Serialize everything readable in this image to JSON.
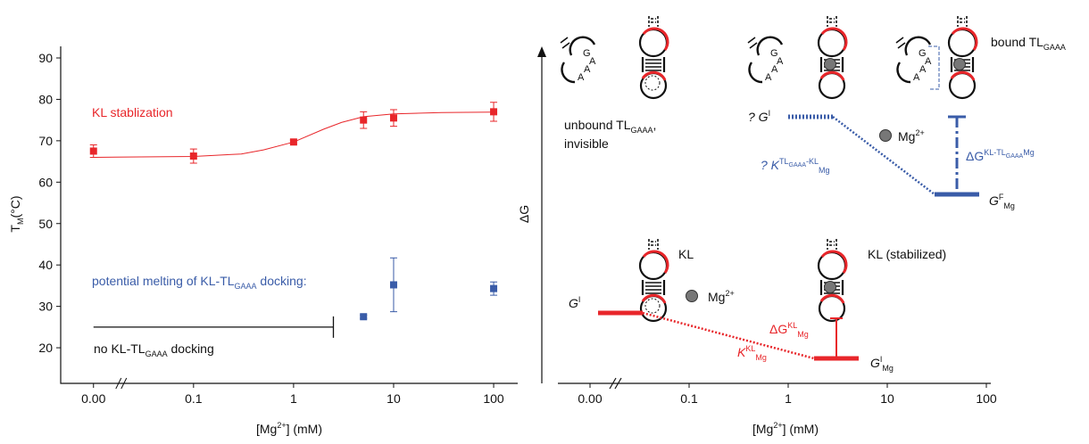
{
  "chart_data": {
    "type": "scatter",
    "x_label": [
      "[Mg",
      "2+",
      "] (mM)"
    ],
    "y_label": [
      "T",
      "M",
      "(°C)"
    ],
    "xscale": "log",
    "x_break": true,
    "xlim": [
      0.0047,
      174
    ],
    "xticks": [
      {
        "value": 0,
        "label": "0.00"
      },
      0.1,
      1,
      10,
      100
    ],
    "ylim": [
      11.4,
      92.8
    ],
    "yticks": [
      20,
      30,
      40,
      50,
      60,
      70,
      80,
      90
    ],
    "series": [
      {
        "type": "scatter",
        "color": "#e8262a",
        "x": [
          0,
          0.1,
          1,
          5,
          10,
          100
        ],
        "values": [
          67.5,
          66.3,
          69.7,
          75,
          75.5,
          77
        ],
        "errors": [
          1.5,
          1.7,
          0.5,
          2,
          2,
          2.3
        ]
      },
      {
        "type": "line",
        "color": "#e8262a",
        "x": [
          0,
          0.1,
          0.3,
          0.5,
          1,
          2,
          3,
          5,
          10,
          30,
          100
        ],
        "values": [
          66,
          66.2,
          66.8,
          67.8,
          69.7,
          72.8,
          74.4,
          75.8,
          76.5,
          76.8,
          76.9
        ]
      },
      {
        "type": "scatter",
        "color": "#3a5ca8",
        "x": [
          5,
          10,
          100
        ],
        "values": [
          27.5,
          35.2,
          34.3
        ],
        "errors": [
          0.4,
          6.5,
          1.6
        ]
      }
    ],
    "annotations": {
      "stabilization": "KL stablization",
      "melting": [
        "potential melting of KL-TL",
        "GAAA",
        " docking:"
      ],
      "no_docking": [
        "no KL-TL",
        "GAAA",
        " docking"
      ],
      "no_docking_line": {
        "x": [
          0,
          2.5
        ],
        "y": 25
      }
    }
  },
  "diagram": {
    "y_label": "ΔG",
    "x_label": [
      "[Mg",
      "2+",
      "] (mM)"
    ],
    "xticks": [
      "0.00",
      "0.1",
      "1",
      "10",
      "100"
    ],
    "unbound": [
      "unbound TL",
      "GAAA",
      ","
    ],
    "invisible": "invisible",
    "bound": [
      "bound TL",
      "GAAA"
    ],
    "gi_question": [
      "? G",
      "I"
    ],
    "mg_top": [
      "Mg",
      "2+"
    ],
    "k_question": [
      "? K",
      "TL",
      "GAAA",
      "-KL",
      "Mg"
    ],
    "dg_bound": [
      "ΔG",
      "KL-TL",
      "GAAA",
      "Mg"
    ],
    "gf": [
      "G",
      "F",
      "Mg"
    ],
    "kl": "KL",
    "kl_stab": "KL (stabilized)",
    "mg_bottom": [
      "Mg",
      "2+"
    ],
    "gi": [
      "G",
      "I"
    ],
    "dg_kl": [
      "ΔG",
      "KL",
      "Mg"
    ],
    "k_kl": [
      "K",
      "KL",
      "Mg"
    ],
    "gi_mg": [
      "G",
      "I",
      "Mg"
    ],
    "loop_letters": [
      "G",
      "A",
      "A",
      "A"
    ]
  }
}
